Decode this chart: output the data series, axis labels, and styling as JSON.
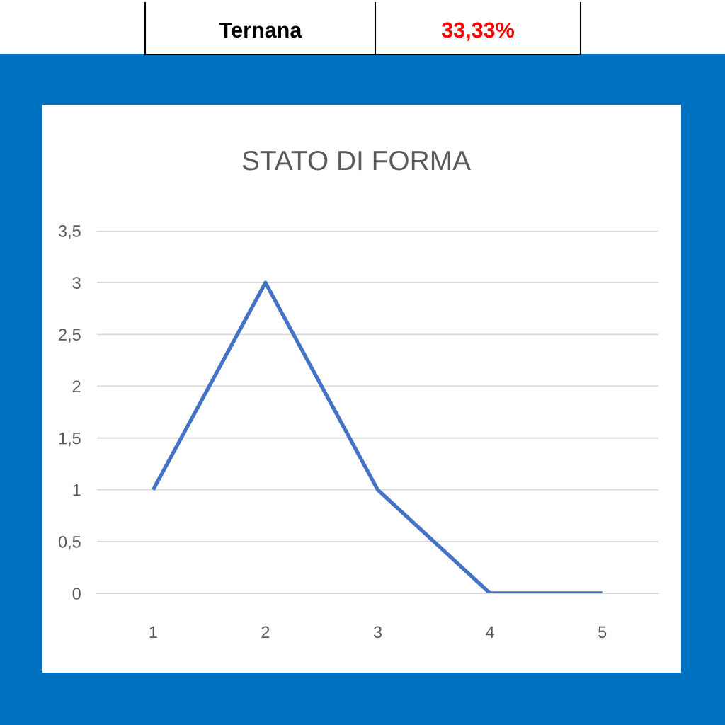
{
  "chart_data": {
    "type": "line",
    "title": "STATO DI FORMA",
    "categories": [
      "1",
      "2",
      "3",
      "4",
      "5"
    ],
    "series": [
      {
        "color": "#4472c4",
        "values": [
          1,
          3,
          1,
          0,
          0
        ]
      }
    ],
    "ylim": [
      0,
      3.5
    ],
    "yticks": [
      0,
      {
        "value": 0.5,
        "label": "0,5"
      },
      1,
      {
        "value": 1.5,
        "label": "1,5"
      },
      2,
      {
        "value": 2.5,
        "label": "2,5"
      },
      3,
      {
        "value": 3.5,
        "label": "3,5"
      }
    ],
    "grid": "y",
    "line_style": "solid",
    "annotations": [
      "Ternana",
      "33,33%"
    ]
  }
}
